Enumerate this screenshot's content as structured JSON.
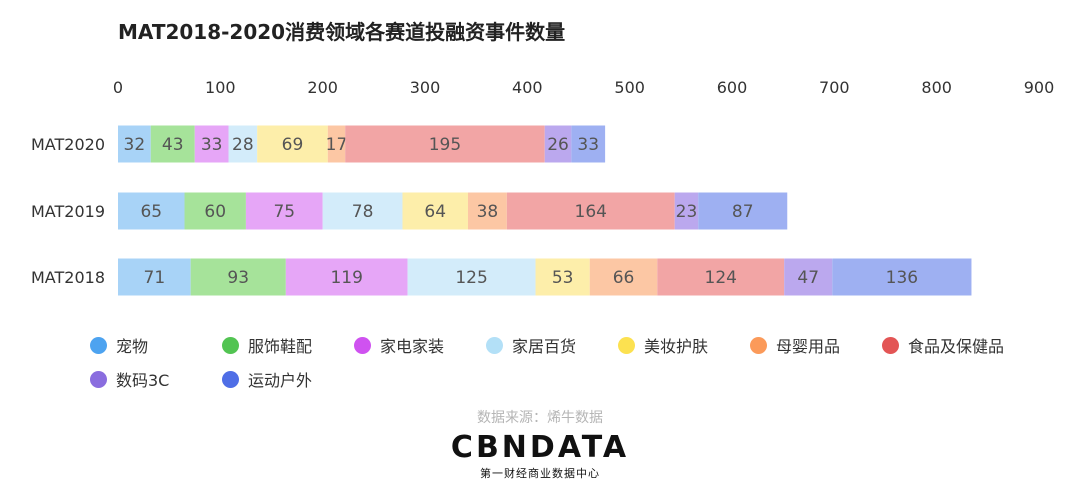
{
  "chart_data": {
    "type": "bar",
    "orientation": "horizontal",
    "stacked": true,
    "title": "MAT2018-2020消费领域各赛道投融资事件数量",
    "categories": [
      "MAT2020",
      "MAT2019",
      "MAT2018"
    ],
    "xlim": [
      0,
      900
    ],
    "xticks": [
      0,
      100,
      200,
      300,
      400,
      500,
      600,
      700,
      800,
      900
    ],
    "legend_position": "bottom",
    "grid": false,
    "series": [
      {
        "name": "宠物",
        "color": "#4da3f0",
        "bar_color": "#a8d3f7",
        "values": [
          32,
          65,
          71
        ]
      },
      {
        "name": "服饰鞋配",
        "color": "#52c452",
        "bar_color": "#a6e39a",
        "values": [
          43,
          60,
          93
        ]
      },
      {
        "name": "家电家装",
        "color": "#cf52f0",
        "bar_color": "#e6a6f7",
        "values": [
          33,
          75,
          119
        ]
      },
      {
        "name": "家居百货",
        "color": "#b3e0f7",
        "bar_color": "#d3ecfa",
        "values": [
          28,
          78,
          125
        ]
      },
      {
        "name": "美妆护肤",
        "color": "#fce150",
        "bar_color": "#fdeeaa",
        "values": [
          69,
          64,
          53
        ]
      },
      {
        "name": "母婴用品",
        "color": "#fb9a5a",
        "bar_color": "#fcc7a4",
        "values": [
          17,
          38,
          66
        ]
      },
      {
        "name": "食品及保健品",
        "color": "#e35555",
        "bar_color": "#f2a5a5",
        "values": [
          195,
          164,
          124
        ]
      },
      {
        "name": "数码3C",
        "color": "#8a6ddf",
        "bar_color": "#bba8ee",
        "values": [
          26,
          23,
          47
        ]
      },
      {
        "name": "运动户外",
        "color": "#4f6ee6",
        "bar_color": "#9eb0f2",
        "values": [
          33,
          87,
          136
        ]
      }
    ]
  },
  "footer": {
    "source": "数据来源：烯牛数据",
    "logo_text": "CBNDATA",
    "logo_subtext": "第一财经商业数据中心"
  }
}
